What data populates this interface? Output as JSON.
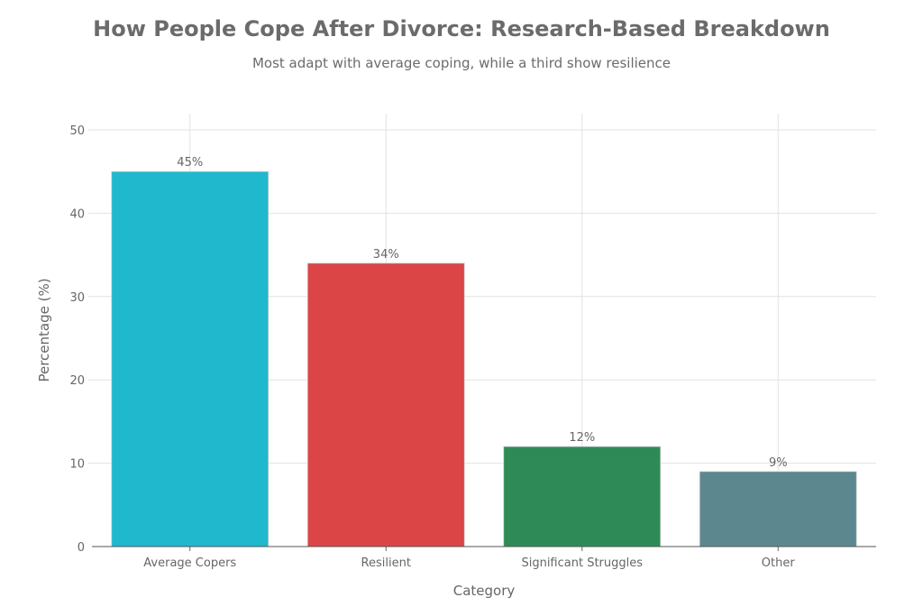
{
  "chart_data": {
    "type": "bar",
    "title": "How People Cope After Divorce: Research-Based Breakdown",
    "subtitle": "Most adapt with average coping, while a third show resilience",
    "xlabel": "Category",
    "ylabel": "Percentage (%)",
    "categories": [
      "Average Copers",
      "Resilient",
      "Significant Struggles",
      "Other"
    ],
    "values": [
      45,
      34,
      12,
      9
    ],
    "data_labels": [
      "45%",
      "34%",
      "12%",
      "9%"
    ],
    "colors": [
      "#1FB8CD",
      "#DB4545",
      "#2E8B57",
      "#5D878F"
    ],
    "ylim": [
      0,
      50
    ],
    "yticks": [
      0,
      10,
      20,
      30,
      40,
      50
    ],
    "grid": true,
    "legend": "none"
  }
}
